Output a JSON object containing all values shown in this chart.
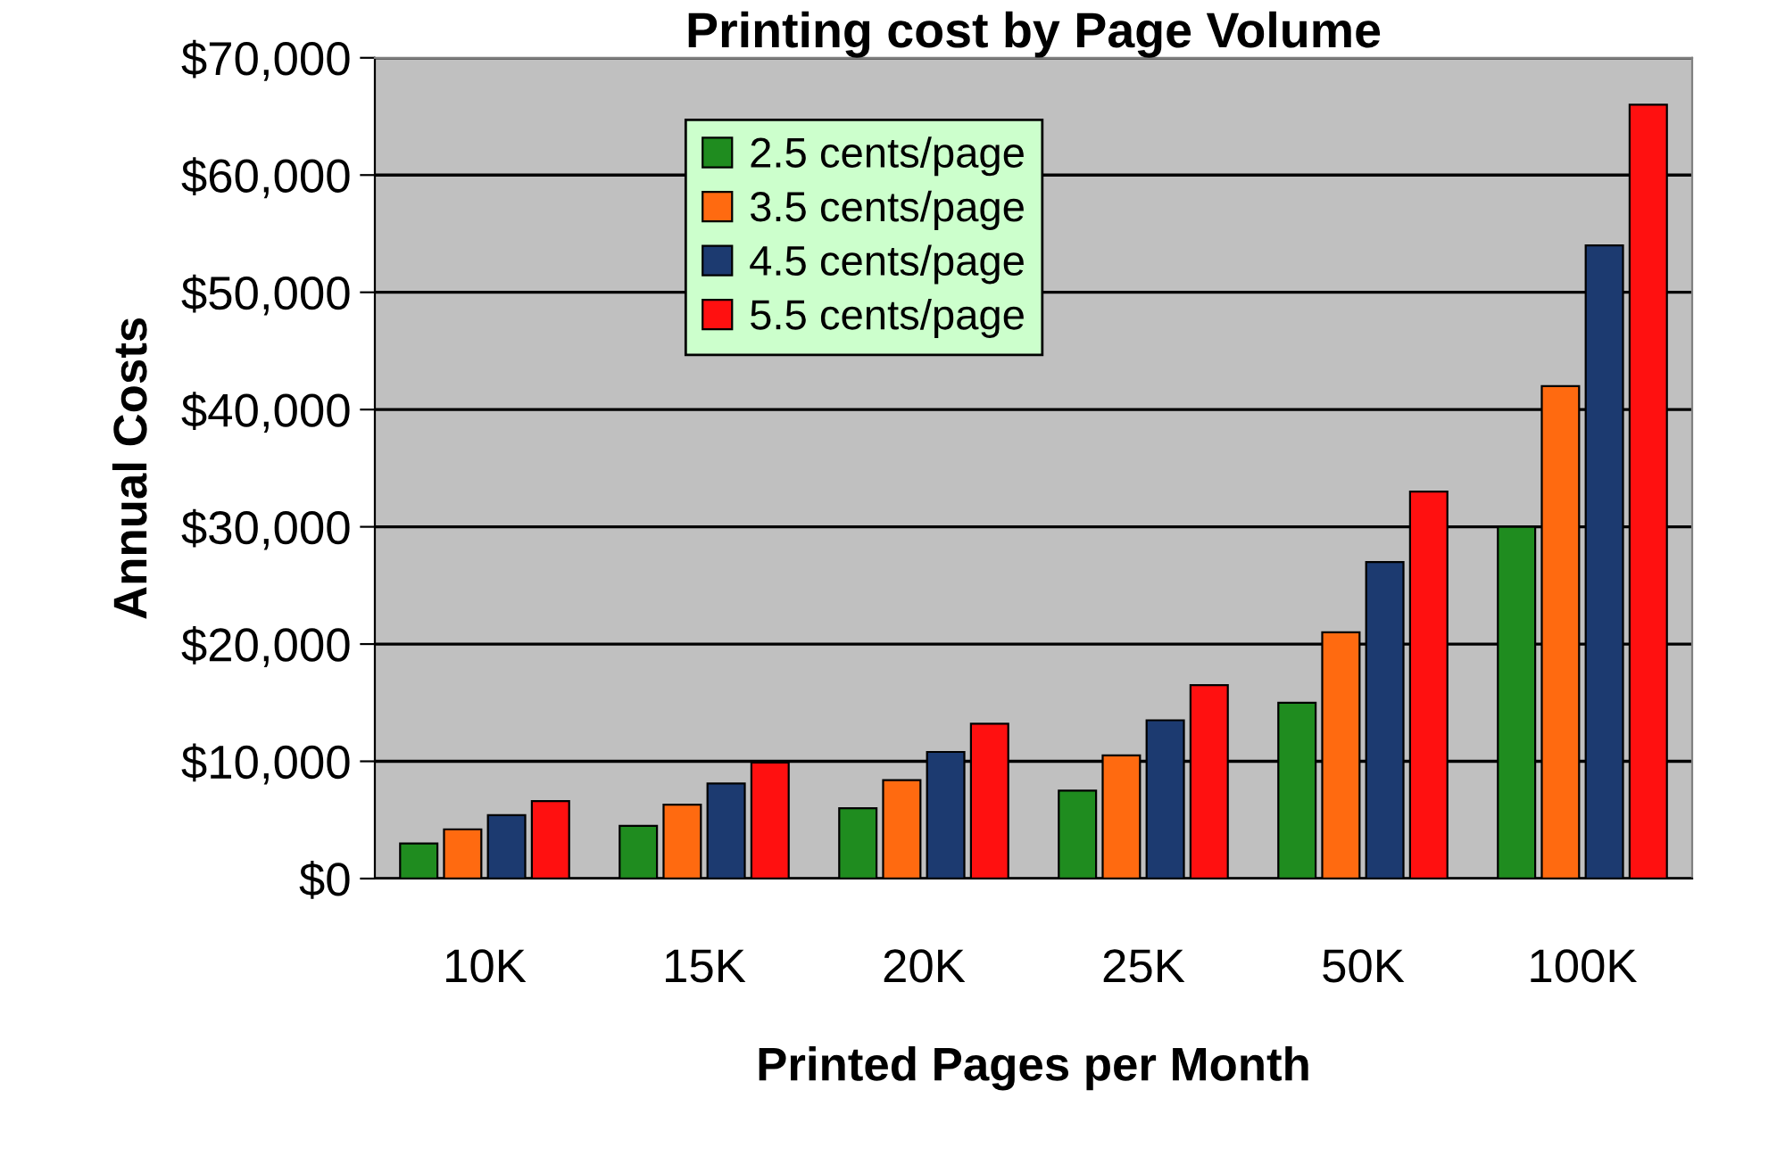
{
  "chart_data": {
    "type": "bar",
    "title": "Printing cost by Page Volume",
    "xlabel": "Printed Pages per Month",
    "ylabel": "Annual Costs",
    "categories": [
      "10K",
      "15K",
      "20K",
      "25K",
      "50K",
      "100K"
    ],
    "series": [
      {
        "name": "2.5 cents/page",
        "color": "#1f8c1f",
        "values": [
          3000,
          4500,
          6000,
          7500,
          15000,
          30000
        ]
      },
      {
        "name": "3.5 cents/page",
        "color": "#ff6a10",
        "values": [
          4200,
          6300,
          8400,
          10500,
          21000,
          42000
        ]
      },
      {
        "name": "4.5 cents/page",
        "color": "#1c3a70",
        "values": [
          5400,
          8100,
          10800,
          13500,
          27000,
          54000
        ]
      },
      {
        "name": "5.5 cents/page",
        "color": "#ff1010",
        "values": [
          6600,
          9900,
          13200,
          16500,
          33000,
          66000
        ]
      }
    ],
    "ylim": [
      0,
      70000
    ],
    "yticks": [
      {
        "value": 0,
        "label": "$0"
      },
      {
        "value": 10000,
        "label": "$10,000"
      },
      {
        "value": 20000,
        "label": "$20,000"
      },
      {
        "value": 30000,
        "label": "$30,000"
      },
      {
        "value": 40000,
        "label": "$40,000"
      },
      {
        "value": 50000,
        "label": "$50,000"
      },
      {
        "value": 60000,
        "label": "$60,000"
      },
      {
        "value": 70000,
        "label": "$70,000"
      }
    ],
    "grid": "y",
    "legend": "top left"
  }
}
